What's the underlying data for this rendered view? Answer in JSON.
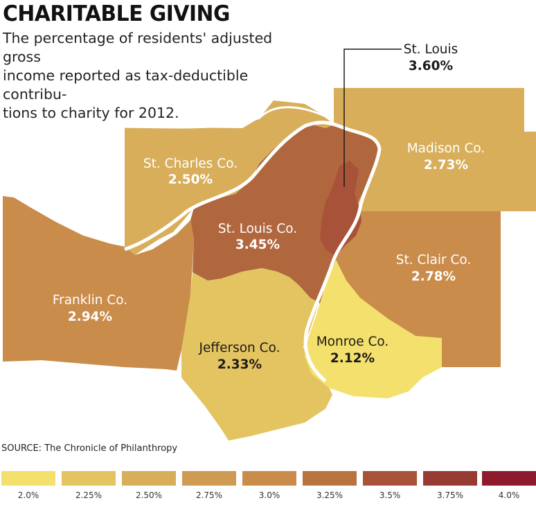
{
  "header": {
    "title": "CHARITABLE GIVING",
    "subtitle_lines": [
      "The percentage of residents' adjusted gross",
      "income reported as tax-deductible contribu-",
      "tions to charity for 2012."
    ]
  },
  "regions": {
    "st_charles": {
      "name": "St. Charles Co.",
      "value": "2.50%",
      "color": "#d8ae5a"
    },
    "madison": {
      "name": "Madison Co.",
      "value": "2.73%",
      "color": "#d8ae5a"
    },
    "st_louis_co": {
      "name": "St. Louis Co.",
      "value": "3.45%",
      "color": "#b1673d"
    },
    "st_louis": {
      "name": "St. Louis",
      "value": "3.60%",
      "color": "#a9523a"
    },
    "franklin": {
      "name": "Franklin Co.",
      "value": "2.94%",
      "color": "#c98c4b"
    },
    "st_clair": {
      "name": "St. Clair Co.",
      "value": "2.78%",
      "color": "#c98c4b"
    },
    "jefferson": {
      "name": "Jefferson Co.",
      "value": "2.33%",
      "color": "#e4c460"
    },
    "monroe": {
      "name": "Monroe Co.",
      "value": "2.12%",
      "color": "#f4e06c"
    }
  },
  "source": "SOURCE: The Chronicle of Philanthropy",
  "legend": [
    {
      "label": "2.0%",
      "color": "#f4e06c"
    },
    {
      "label": "2.25%",
      "color": "#e4c460"
    },
    {
      "label": "2.50%",
      "color": "#d8ae5a"
    },
    {
      "label": "2.75%",
      "color": "#cf9a52"
    },
    {
      "label": "3.0%",
      "color": "#c98c4b"
    },
    {
      "label": "3.25%",
      "color": "#b8743f"
    },
    {
      "label": "3.5%",
      "color": "#a9523a"
    },
    {
      "label": "3.75%",
      "color": "#973a31"
    },
    {
      "label": "4.0%",
      "color": "#8e1a2e"
    }
  ]
}
